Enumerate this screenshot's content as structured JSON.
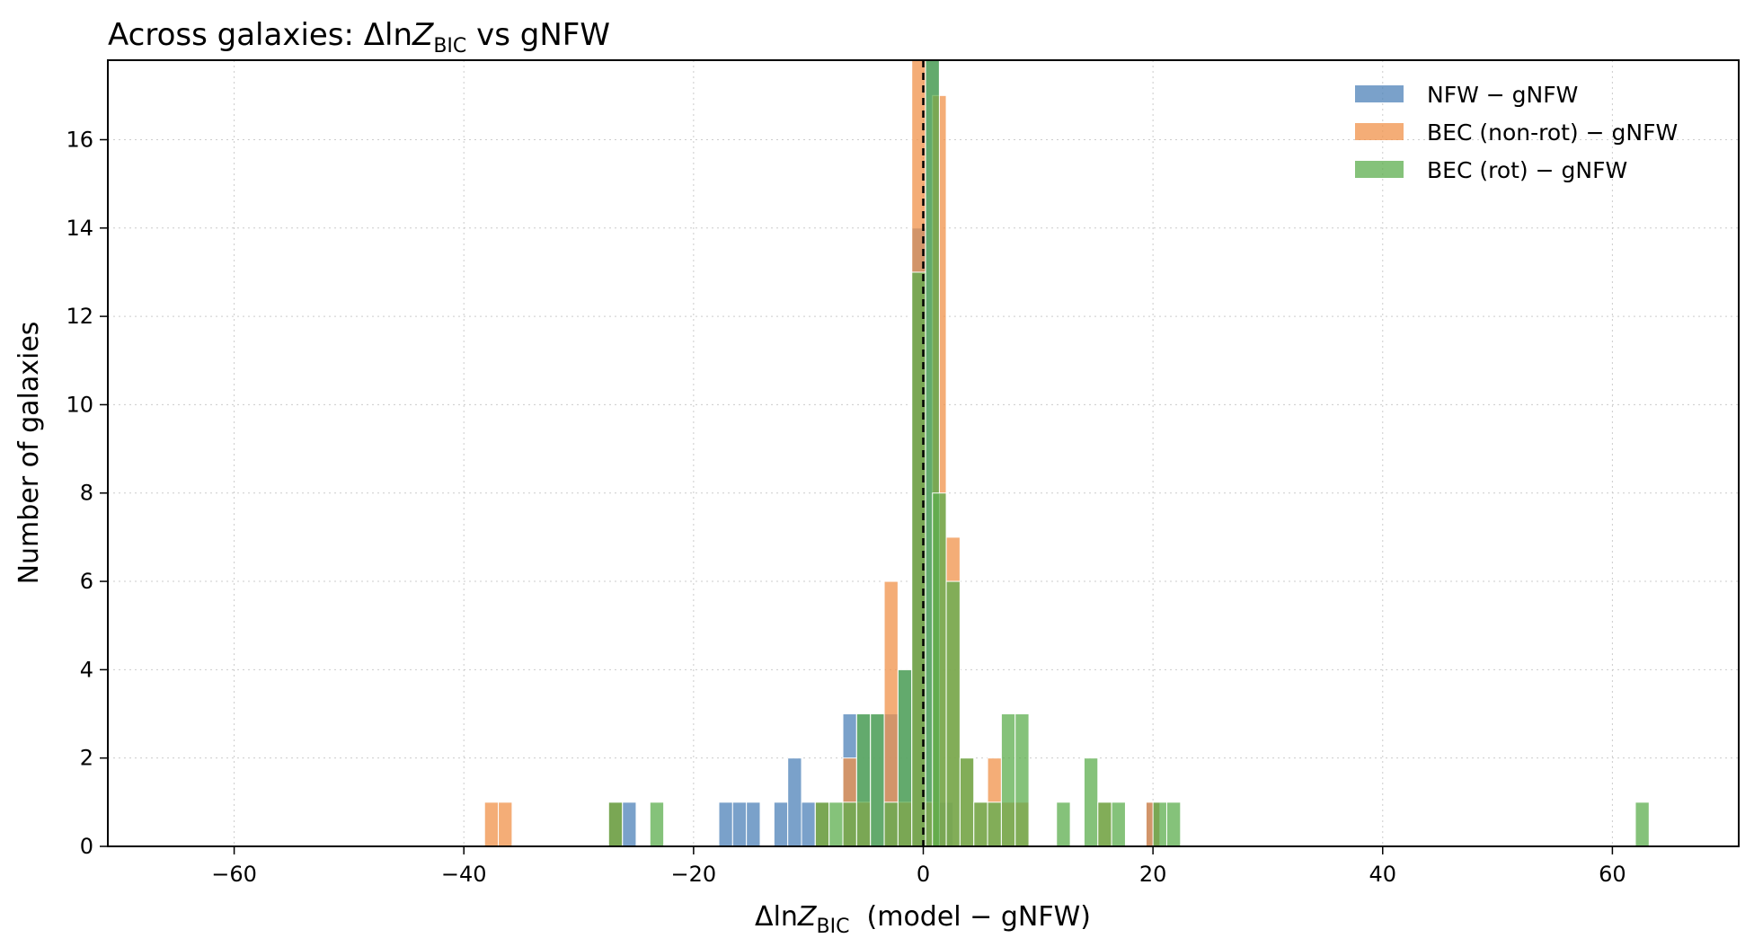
{
  "chart_data": {
    "type": "bar",
    "title_main": "Across galaxies: Δln",
    "title_z": "Z",
    "title_sub": "BIC",
    "title_tail": " vs gNFW",
    "xlabel_main": "Δln",
    "xlabel_z": "Z",
    "xlabel_sub": "BIC",
    "xlabel_tail": "  (model − gNFW)",
    "ylabel": "Number of galaxies",
    "xlim": [
      -71,
      71
    ],
    "ylim": [
      0,
      17.8
    ],
    "xticks": [
      -60,
      -40,
      -20,
      0,
      20,
      40,
      60
    ],
    "yticks": [
      0,
      2,
      4,
      6,
      8,
      10,
      12,
      14,
      16
    ],
    "xtick_labels": [
      "−60",
      "−40",
      "−20",
      "0",
      "20",
      "40",
      "60"
    ],
    "ytick_labels": [
      "0",
      "2",
      "4",
      "6",
      "8",
      "10",
      "12",
      "14",
      "16"
    ],
    "grid": true,
    "legend_position": "top-right",
    "reference_line_x": 0,
    "series": [
      {
        "name": "NFW − gNFW",
        "color": "#4e81b8",
        "bin_width": 1.2,
        "bins": [
          {
            "x": -26.8,
            "count": 1
          },
          {
            "x": -25.6,
            "count": 1
          },
          {
            "x": -17.2,
            "count": 1
          },
          {
            "x": -16.0,
            "count": 1
          },
          {
            "x": -14.8,
            "count": 1
          },
          {
            "x": -12.4,
            "count": 1
          },
          {
            "x": -11.2,
            "count": 2
          },
          {
            "x": -10.0,
            "count": 1
          },
          {
            "x": -8.8,
            "count": 1
          },
          {
            "x": -6.4,
            "count": 3
          },
          {
            "x": -5.2,
            "count": 3
          },
          {
            "x": -4.0,
            "count": 3
          },
          {
            "x": -2.8,
            "count": 3
          },
          {
            "x": -1.6,
            "count": 4
          },
          {
            "x": -0.4,
            "count": 14
          },
          {
            "x": 0.8,
            "count": 17.8
          },
          {
            "x": 2.0,
            "count": 1
          },
          {
            "x": 20.0,
            "count": 1
          }
        ]
      },
      {
        "name": "BEC (non-rot) − gNFW",
        "color": "#f0924a",
        "bin_width": 1.2,
        "bins": [
          {
            "x": -37.6,
            "count": 1
          },
          {
            "x": -36.4,
            "count": 1
          },
          {
            "x": -26.8,
            "count": 1
          },
          {
            "x": -8.8,
            "count": 1
          },
          {
            "x": -6.4,
            "count": 2
          },
          {
            "x": -5.2,
            "count": 1
          },
          {
            "x": -2.8,
            "count": 6
          },
          {
            "x": -1.6,
            "count": 1
          },
          {
            "x": -0.4,
            "count": 17.8
          },
          {
            "x": 0.8,
            "count": 1
          },
          {
            "x": 1.4,
            "count": 17
          },
          {
            "x": 2.6,
            "count": 7
          },
          {
            "x": 3.8,
            "count": 2
          },
          {
            "x": 5.0,
            "count": 1
          },
          {
            "x": 6.2,
            "count": 2
          },
          {
            "x": 7.4,
            "count": 1
          },
          {
            "x": 8.6,
            "count": 1
          },
          {
            "x": 15.8,
            "count": 1
          },
          {
            "x": 20.0,
            "count": 1
          }
        ]
      },
      {
        "name": "BEC (rot) − gNFW",
        "color": "#5cae4e",
        "bin_width": 1.2,
        "bins": [
          {
            "x": -26.8,
            "count": 1
          },
          {
            "x": -23.2,
            "count": 1
          },
          {
            "x": -8.8,
            "count": 1
          },
          {
            "x": -7.6,
            "count": 1
          },
          {
            "x": -6.4,
            "count": 1
          },
          {
            "x": -5.2,
            "count": 3
          },
          {
            "x": -4.0,
            "count": 3
          },
          {
            "x": -2.8,
            "count": 1
          },
          {
            "x": -1.6,
            "count": 4
          },
          {
            "x": -0.4,
            "count": 13
          },
          {
            "x": 0.8,
            "count": 17.8
          },
          {
            "x": 1.4,
            "count": 8
          },
          {
            "x": 2.6,
            "count": 6
          },
          {
            "x": 3.8,
            "count": 2
          },
          {
            "x": 5.0,
            "count": 1
          },
          {
            "x": 6.2,
            "count": 1
          },
          {
            "x": 7.4,
            "count": 3
          },
          {
            "x": 8.6,
            "count": 3
          },
          {
            "x": 12.2,
            "count": 1
          },
          {
            "x": 14.6,
            "count": 2
          },
          {
            "x": 15.8,
            "count": 1
          },
          {
            "x": 17.0,
            "count": 1
          },
          {
            "x": 20.6,
            "count": 1
          },
          {
            "x": 21.8,
            "count": 1
          },
          {
            "x": 62.6,
            "count": 1
          }
        ]
      }
    ]
  }
}
